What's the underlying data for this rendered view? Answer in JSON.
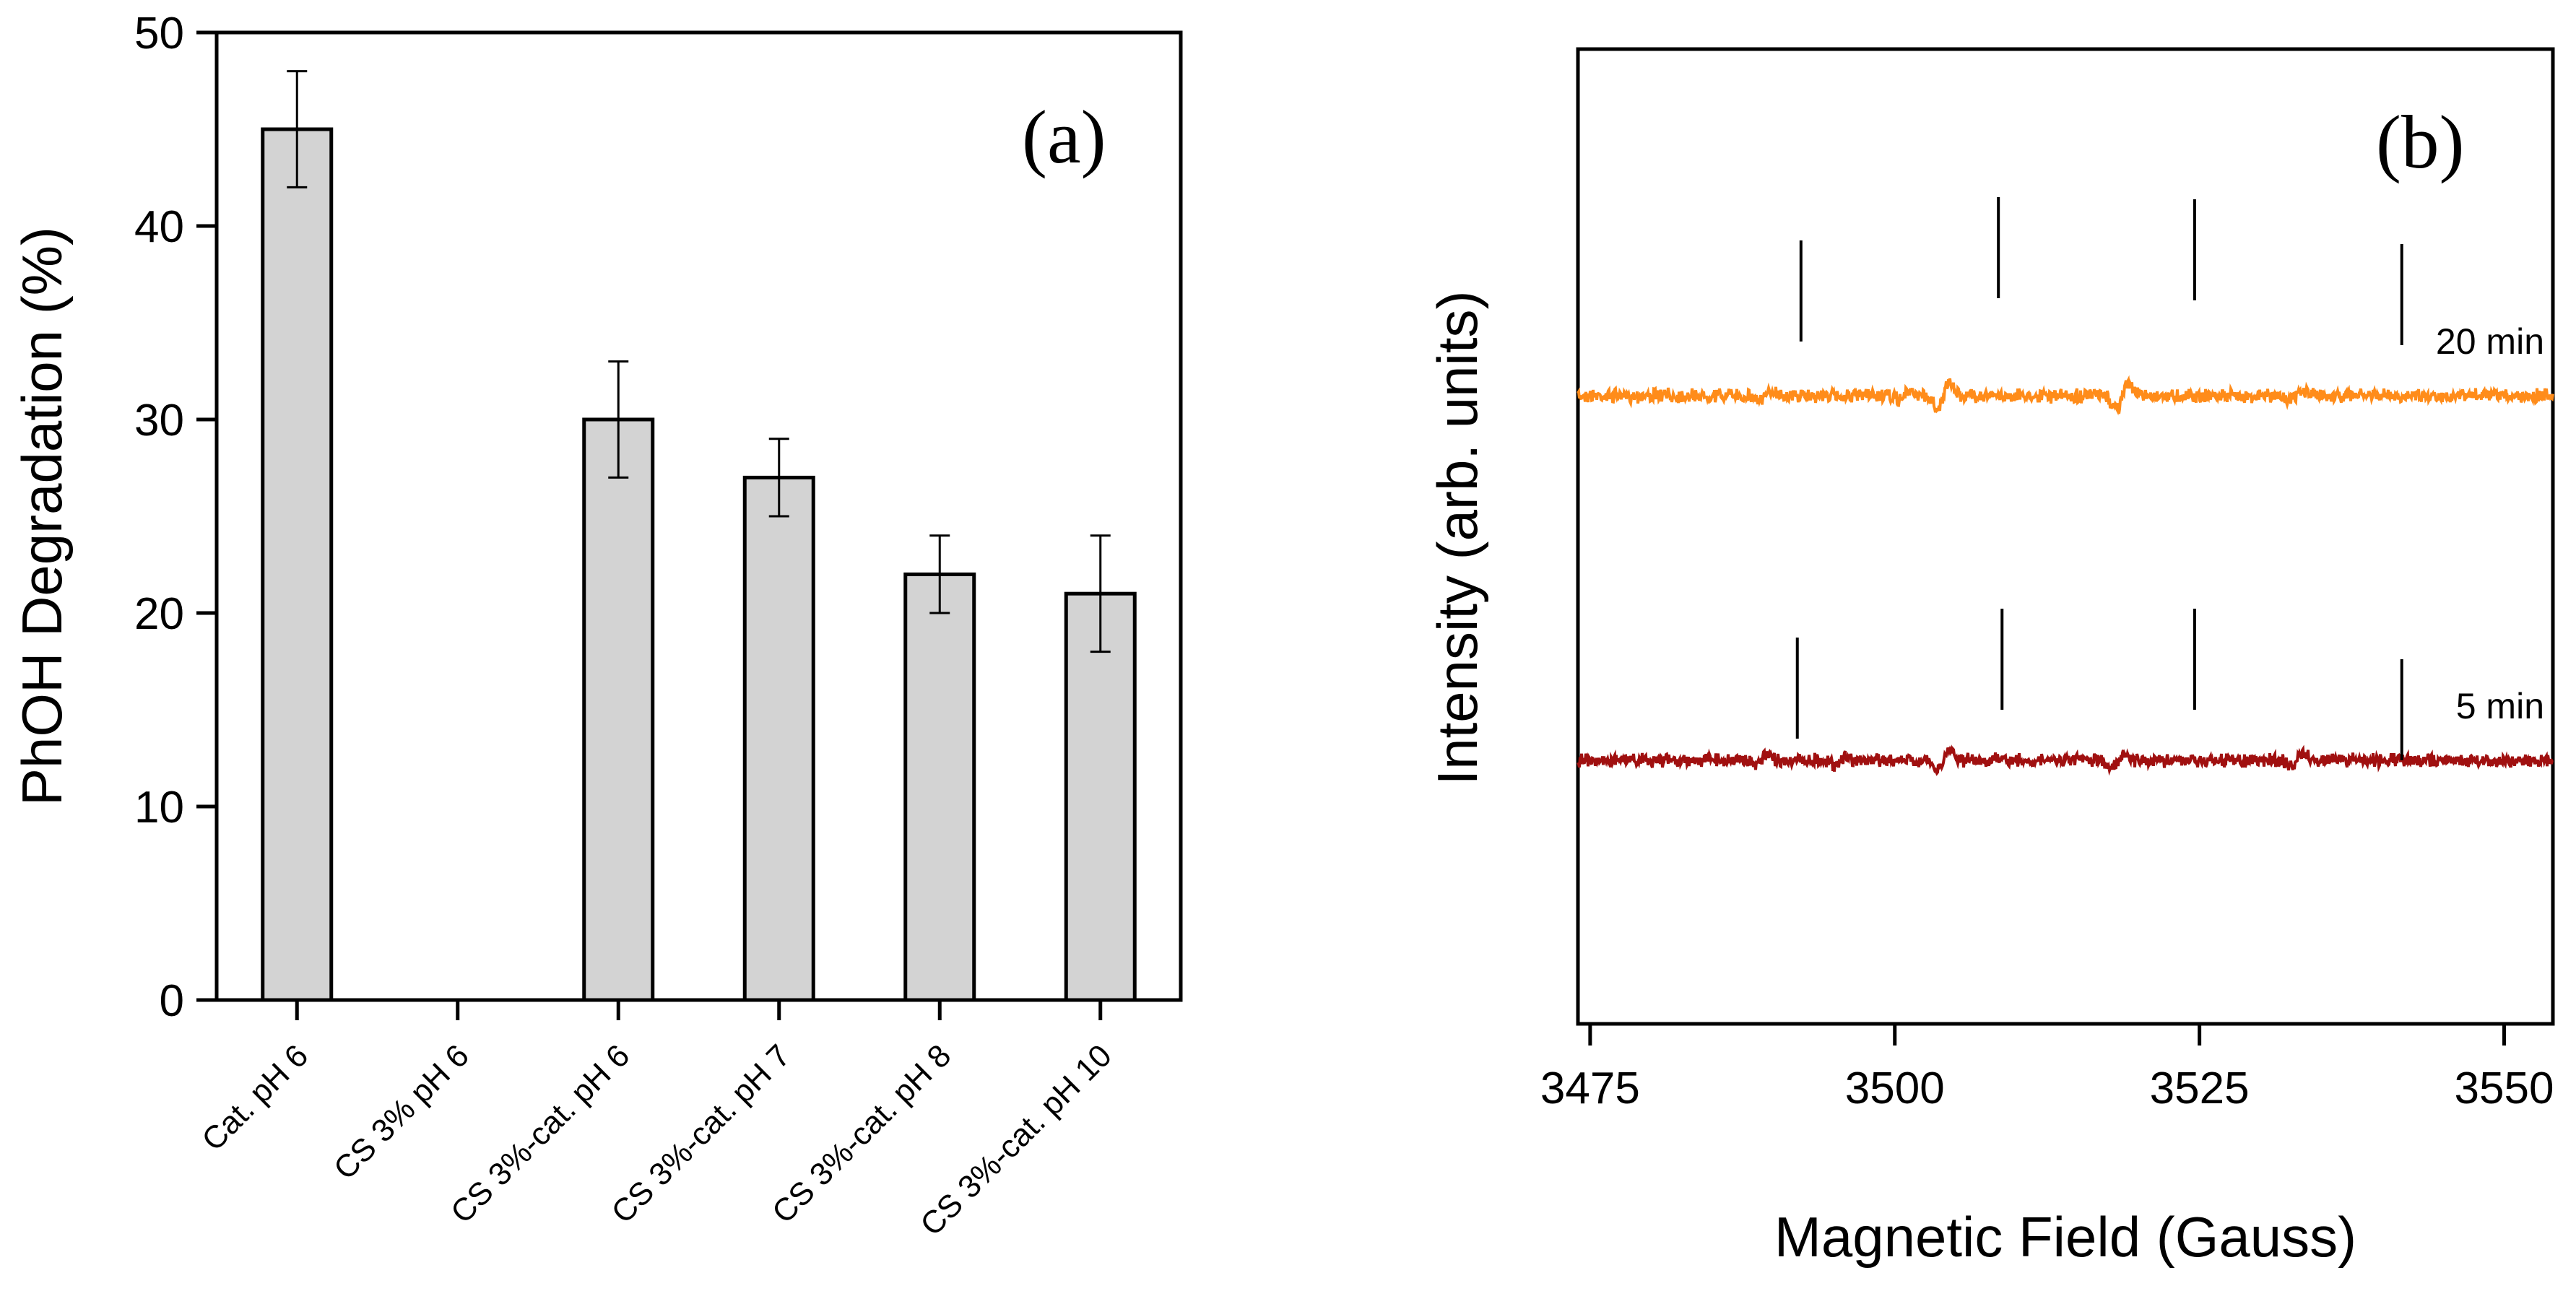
{
  "chart_data": [
    {
      "type": "bar",
      "panel_label": "(a)",
      "ylabel": "PhOH Degradation (%)",
      "xlabel": "",
      "ylim": [
        0,
        50
      ],
      "yticks": [
        "0",
        "10",
        "20",
        "30",
        "40",
        "50"
      ],
      "categories": [
        "Cat. pH 6",
        "CS 3% pH 6",
        "CS 3%-cat. pH 6",
        "CS 3%-cat. pH 7",
        "CS 3%-cat. pH 8",
        "CS 3%-cat. pH 10"
      ],
      "values": [
        45,
        0,
        30,
        27,
        22,
        21
      ],
      "errors": [
        3,
        0,
        3,
        2,
        2,
        3
      ],
      "bar_color": "#d3d3d3"
    },
    {
      "type": "line",
      "panel_label": "(b)",
      "xlabel": "Magnetic Field (Gauss)",
      "ylabel": "Intensity (arb. units)",
      "xlim": [
        3474,
        3554
      ],
      "xticks": [
        "3475",
        "3500",
        "3525",
        "3550"
      ],
      "series": [
        {
          "name": "20 min",
          "color": "#ff8c1a",
          "baseline": 1,
          "features": [
            {
              "x": 3489.5,
              "amp": 0.35
            },
            {
              "x": 3500.8,
              "amp": 0.3
            },
            {
              "x": 3504.0,
              "amp": 0.9
            },
            {
              "x": 3518.7,
              "amp": 1.0
            },
            {
              "x": 3533.0,
              "amp": 0.35
            },
            {
              "x": 3542.0,
              "amp": 0.25
            }
          ],
          "marker_lines": [
            3492.3,
            3508.5,
            3524.6,
            3541.6
          ]
        },
        {
          "name": "5 min",
          "color": "#a01010",
          "baseline": 0,
          "features": [
            {
              "x": 3489.0,
              "amp": 0.3
            },
            {
              "x": 3495.5,
              "amp": 0.3
            },
            {
              "x": 3504.0,
              "amp": 0.8
            },
            {
              "x": 3518.3,
              "amp": 0.5
            },
            {
              "x": 3533.0,
              "amp": 0.5
            }
          ],
          "marker_lines": [
            3492.0,
            3508.8,
            3524.6,
            3541.6
          ]
        }
      ]
    }
  ]
}
